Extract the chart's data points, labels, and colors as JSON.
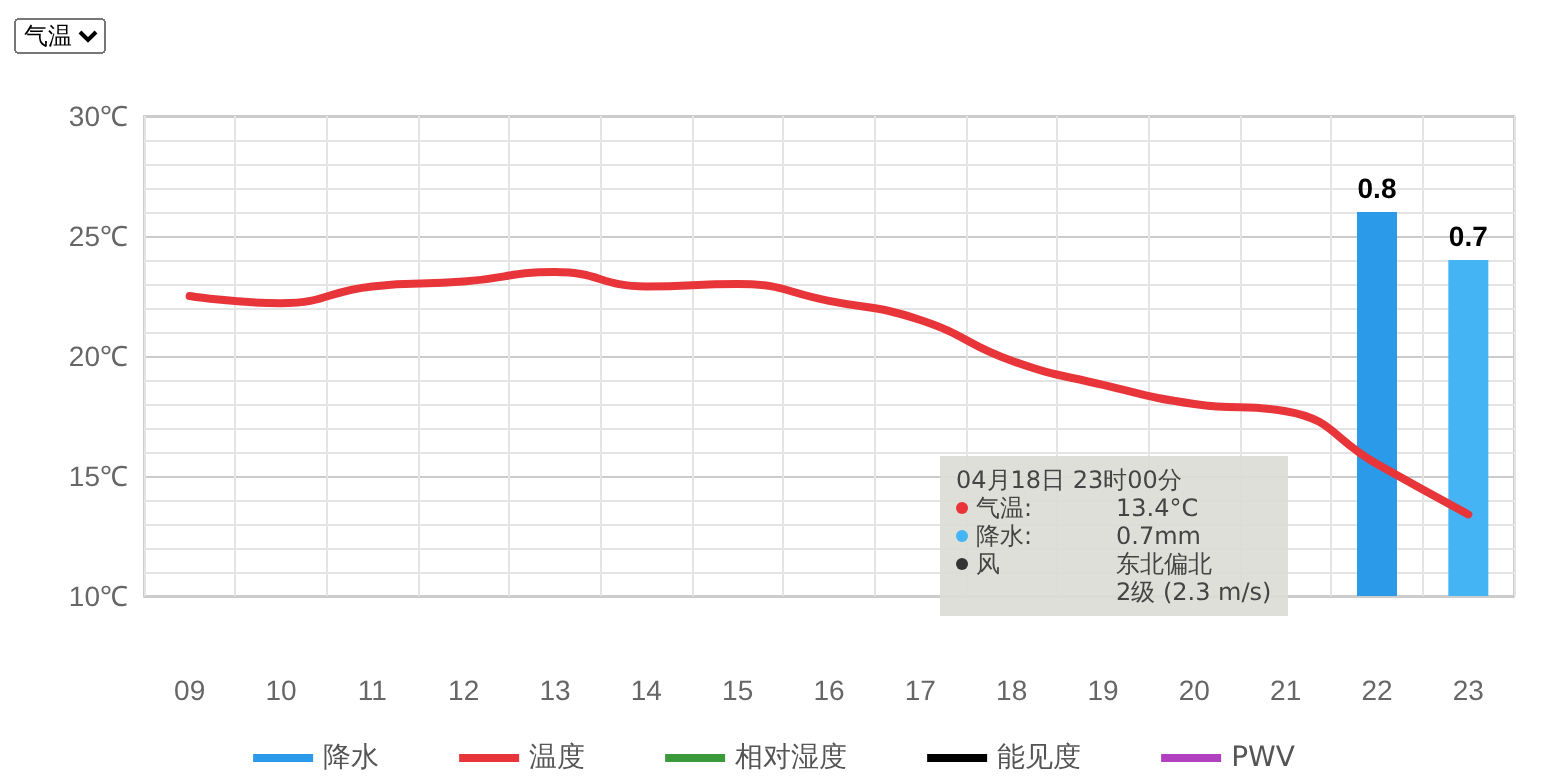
{
  "chart_data": {
    "type": "line",
    "categories": [
      "09",
      "10",
      "11",
      "12",
      "13",
      "14",
      "15",
      "16",
      "17",
      "18",
      "19",
      "20",
      "21",
      "22",
      "23"
    ],
    "series": [
      {
        "name": "降水",
        "type": "bar",
        "axis": "y2",
        "color": "#2b9ae8",
        "colors": [
          null,
          null,
          null,
          null,
          null,
          null,
          null,
          null,
          null,
          null,
          null,
          null,
          null,
          "#2b9ae8",
          "#44b4f5"
        ],
        "values": [
          null,
          null,
          null,
          null,
          null,
          null,
          null,
          null,
          null,
          null,
          null,
          null,
          null,
          0.8,
          0.7
        ],
        "value_labels": [
          null,
          null,
          null,
          null,
          null,
          null,
          null,
          null,
          null,
          null,
          null,
          null,
          null,
          "0.8",
          "0.7"
        ]
      },
      {
        "name": "温度",
        "color": "#e8353a",
        "line_style": "solid",
        "values": [
          22.5,
          22.2,
          22.9,
          23.1,
          23.5,
          22.9,
          23.0,
          22.3,
          21.5,
          19.8,
          18.8,
          18.0,
          17.7,
          15.5,
          13.4
        ]
      },
      {
        "name": "相对湿度",
        "color": "#3a9a3a",
        "line_style": "dotted",
        "values": [
          null,
          null,
          null,
          null,
          null,
          null,
          null,
          null,
          null,
          null,
          null,
          null,
          null,
          null,
          null
        ]
      },
      {
        "name": "能见度",
        "color": "#000000",
        "line_style": "dotted",
        "values": [
          null,
          null,
          null,
          null,
          null,
          null,
          null,
          null,
          null,
          null,
          null,
          null,
          null,
          null,
          null
        ]
      },
      {
        "name": "PWV",
        "color": "#b040c0",
        "line_style": "solid",
        "values": [
          null,
          null,
          null,
          null,
          null,
          null,
          null,
          null,
          null,
          null,
          null,
          null,
          null,
          null,
          null
        ]
      }
    ],
    "ylim": [
      10,
      30
    ],
    "yticks": [
      {
        "value": 10,
        "label": "10℃"
      },
      {
        "value": 15,
        "label": "15℃"
      },
      {
        "value": 20,
        "label": "20℃"
      },
      {
        "value": 25,
        "label": "25℃"
      },
      {
        "value": 30,
        "label": "30℃"
      }
    ],
    "y2lim": [
      0,
      1
    ],
    "tick_labels": "xy",
    "grid": true,
    "legend": "bottom",
    "marker": "none",
    "annotations": [
      "气温",
      "04月18日 23时00分",
      "气温:",
      "13.4°C",
      "降水:",
      "0.7mm",
      "风",
      "东北偏北",
      "2级 (2.3 m/s)"
    ]
  }
}
